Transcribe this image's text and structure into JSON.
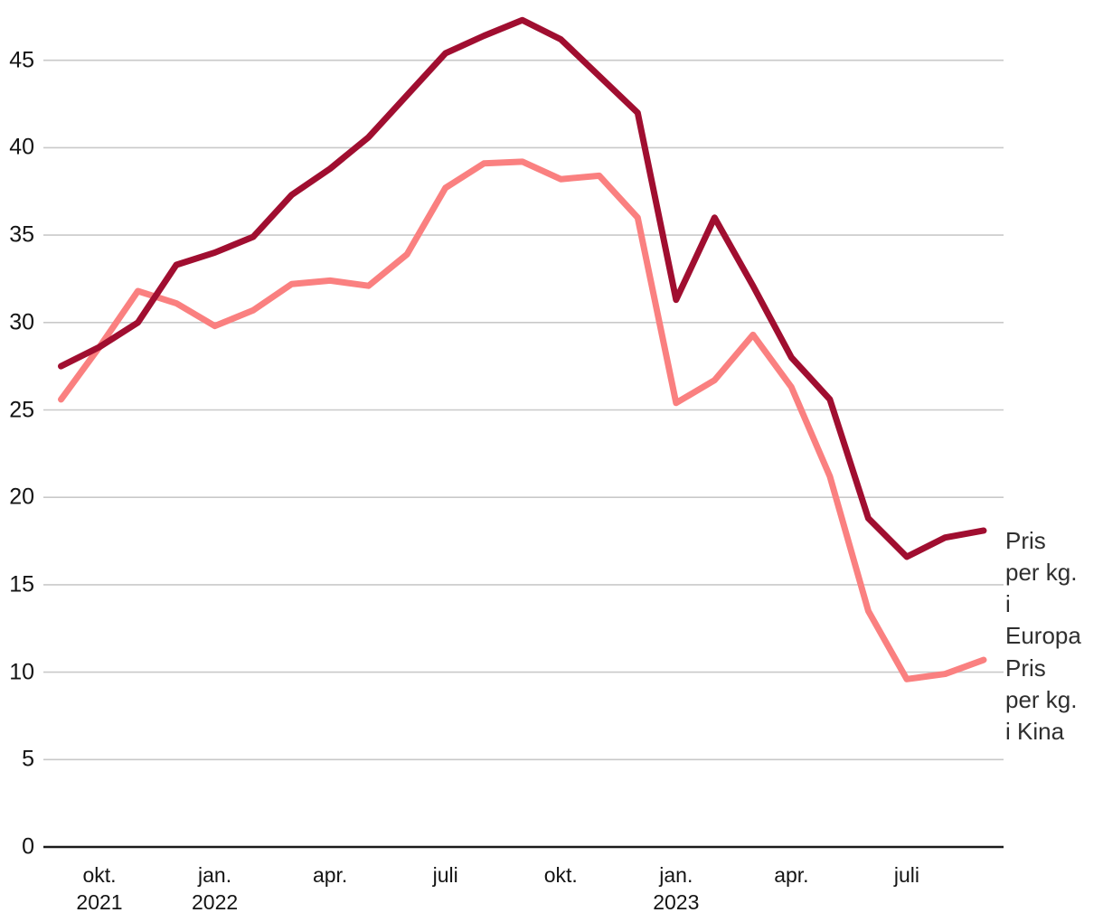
{
  "chart_data": {
    "type": "line",
    "title": "",
    "xlabel": "",
    "ylabel": "",
    "grid": true,
    "legend_position": "right-end-of-lines",
    "ylim": [
      0,
      48
    ],
    "y_ticks": [
      0,
      5,
      10,
      15,
      20,
      25,
      30,
      35,
      40,
      45
    ],
    "x": [
      "sep. 2021",
      "okt. 2021",
      "nov. 2021",
      "des. 2021",
      "jan. 2022",
      "feb. 2022",
      "mars 2022",
      "apr. 2022",
      "mai 2022",
      "juni 2022",
      "juli 2022",
      "aug. 2022",
      "sep. 2022",
      "okt. 2022",
      "nov. 2022",
      "des. 2022",
      "jan. 2023",
      "feb. 2023",
      "mars 2023",
      "apr. 2023",
      "mai 2023",
      "juni 2023",
      "juli 2023",
      "aug. 2023",
      "sep. 2023"
    ],
    "x_tick_labels": [
      {
        "month_index": 1,
        "line1": "okt.",
        "line2": "2021"
      },
      {
        "month_index": 4,
        "line1": "jan.",
        "line2": "2022"
      },
      {
        "month_index": 7,
        "line1": "apr.",
        "line2": ""
      },
      {
        "month_index": 10,
        "line1": "juli",
        "line2": ""
      },
      {
        "month_index": 13,
        "line1": "okt.",
        "line2": ""
      },
      {
        "month_index": 16,
        "line1": "jan.",
        "line2": "2023"
      },
      {
        "month_index": 19,
        "line1": "apr.",
        "line2": ""
      },
      {
        "month_index": 22,
        "line1": "juli",
        "line2": ""
      }
    ],
    "series": [
      {
        "name": "Pris per kg. i Kina",
        "label_lines": [
          "Pris",
          "per kg.",
          "i Kina"
        ],
        "color": "#fa8080",
        "values": [
          25.6,
          28.6,
          31.8,
          31.1,
          29.8,
          30.7,
          32.2,
          32.4,
          32.1,
          33.9,
          37.7,
          39.1,
          39.2,
          38.2,
          38.4,
          36.0,
          25.4,
          26.7,
          29.3,
          26.3,
          21.2,
          13.5,
          9.6,
          9.9,
          10.7
        ]
      },
      {
        "name": "Pris per kg. i Europa",
        "label_lines": [
          "Pris",
          "per kg.",
          "i",
          "Europa"
        ],
        "color": "#a00e30",
        "values": [
          27.5,
          28.6,
          30.0,
          33.3,
          34.0,
          34.9,
          37.3,
          38.8,
          40.6,
          43.0,
          45.4,
          46.4,
          47.3,
          46.2,
          44.1,
          42.0,
          31.3,
          36.0,
          32.1,
          28.0,
          25.6,
          18.8,
          16.6,
          17.7,
          18.1
        ]
      }
    ],
    "colors": {
      "grid": "#c9c9c9",
      "axis": "#1a1a1a",
      "tick_text": "#141414",
      "series_label_text": "#2f2f2f"
    }
  }
}
